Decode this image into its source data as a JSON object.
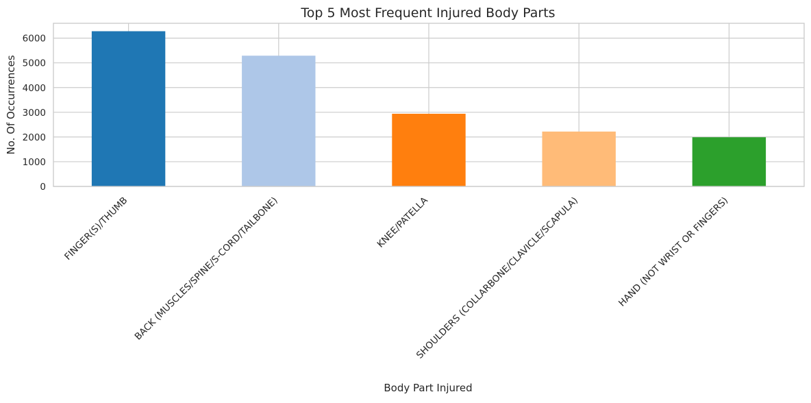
{
  "chart_data": {
    "type": "bar",
    "title": "Top 5 Most Frequent Injured Body Parts",
    "xlabel": "Body Part Injured",
    "ylabel": "No. Of Occurrences",
    "categories": [
      "FINGER(S)/THUMB",
      "BACK (MUSCLES/SPINE/S-CORD/TAILBONE)",
      "KNEE/PATELLA",
      "SHOULDERS (COLLARBONE/CLAVICLE/SCAPULA)",
      "HAND (NOT WRIST OR FINGERS)"
    ],
    "values": [
      6280,
      5290,
      2940,
      2220,
      1990
    ],
    "colors": [
      "#1f77b4",
      "#aec7e8",
      "#ff7f0e",
      "#ffbb78",
      "#2ca02c"
    ],
    "ylim": [
      0,
      6600
    ],
    "yticks": [
      "0",
      "1000",
      "2000",
      "3000",
      "4000",
      "5000",
      "6000"
    ],
    "grid": true,
    "legend": "none"
  }
}
